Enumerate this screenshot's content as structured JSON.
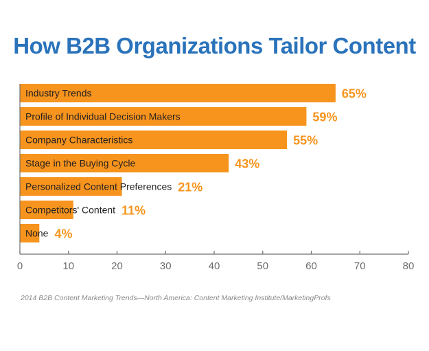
{
  "title": "How B2B Organizations Tailor Content",
  "source": "2014 B2B Content Marketing Trends—North America: Content Marketing Institute/MarketingProfs",
  "colors": {
    "bar": "#f7941d",
    "value_label": "#f7941d",
    "title": "#2a73bb",
    "axis": "#6d6e71",
    "text": "#231f20"
  },
  "chart_data": {
    "type": "bar",
    "orientation": "horizontal",
    "categories": [
      "Industry Trends",
      "Profile of Individual Decision Makers",
      "Company Characteristics",
      "Stage in the Buying Cycle",
      "Personalized Content Preferences",
      "Competitors' Content",
      "None"
    ],
    "values": [
      65,
      59,
      55,
      43,
      21,
      11,
      4
    ],
    "value_labels": [
      "65%",
      "59%",
      "55%",
      "43%",
      "21%",
      "11%",
      "4%"
    ],
    "xlim": [
      0,
      80
    ],
    "xticks": [
      0,
      10,
      20,
      30,
      40,
      50,
      60,
      70,
      80
    ],
    "grid": false,
    "title": "How B2B Organizations Tailor Content"
  }
}
